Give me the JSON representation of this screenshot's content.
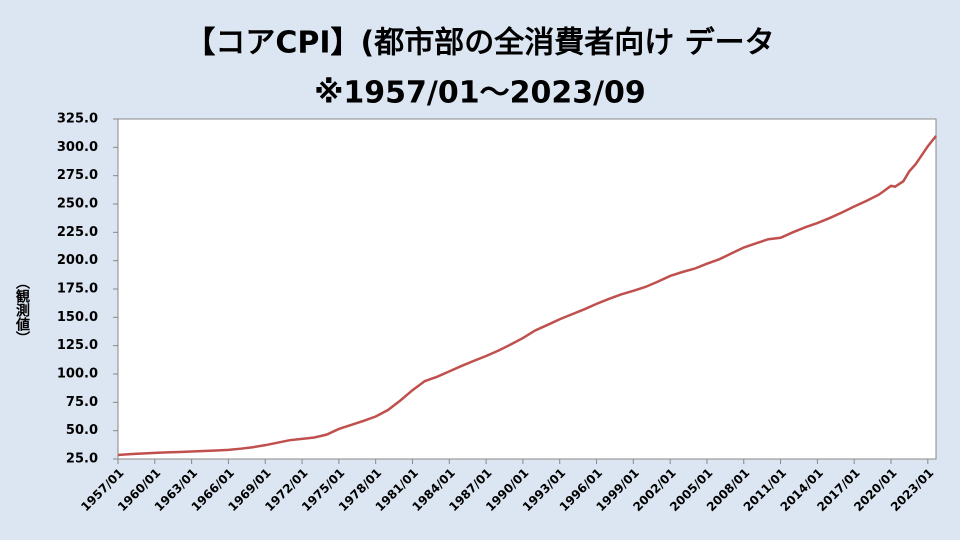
{
  "chart_data": {
    "type": "line",
    "title": "【コアCPI】(都市部の全消費者向け データ",
    "subtitle": "※1957/01～2023/09",
    "y_label": "（観測値）",
    "x": [
      "1957/01",
      "1958/01",
      "1959/01",
      "1960/01",
      "1961/01",
      "1962/01",
      "1963/01",
      "1964/01",
      "1965/01",
      "1966/01",
      "1967/01",
      "1968/01",
      "1969/01",
      "1970/01",
      "1971/01",
      "1972/01",
      "1973/01",
      "1974/01",
      "1975/01",
      "1976/01",
      "1977/01",
      "1978/01",
      "1979/01",
      "1980/01",
      "1981/01",
      "1982/01",
      "1983/01",
      "1984/01",
      "1985/01",
      "1986/01",
      "1987/01",
      "1988/01",
      "1989/01",
      "1990/01",
      "1991/01",
      "1992/01",
      "1993/01",
      "1994/01",
      "1995/01",
      "1996/01",
      "1997/01",
      "1998/01",
      "1999/01",
      "2000/01",
      "2001/01",
      "2002/01",
      "2003/01",
      "2004/01",
      "2005/01",
      "2006/01",
      "2007/01",
      "2008/01",
      "2009/01",
      "2010/01",
      "2011/01",
      "2012/01",
      "2013/01",
      "2014/01",
      "2015/01",
      "2016/01",
      "2017/01",
      "2018/01",
      "2019/01",
      "2020/01",
      "2020/05",
      "2021/01",
      "2021/07",
      "2022/01",
      "2022/07",
      "2023/01",
      "2023/09"
    ],
    "series": [
      {
        "name": "コアCPI",
        "color": "#c0504d",
        "values": [
          28.5,
          29.3,
          29.8,
          30.4,
          30.8,
          31.2,
          31.6,
          32.1,
          32.5,
          33.0,
          34.1,
          35.4,
          37.2,
          39.4,
          41.6,
          42.8,
          44.0,
          46.5,
          51.5,
          55.1,
          58.6,
          62.5,
          68.2,
          76.5,
          85.7,
          93.7,
          97.5,
          102.3,
          107.1,
          111.6,
          115.9,
          120.6,
          126.0,
          131.7,
          138.4,
          143.3,
          148.3,
          152.7,
          157.1,
          161.9,
          166.2,
          170.2,
          173.4,
          176.9,
          181.5,
          186.5,
          190.0,
          193.0,
          197.3,
          201.2,
          206.4,
          211.6,
          215.3,
          218.9,
          220.2,
          225.0,
          229.4,
          233.2,
          237.6,
          242.5,
          247.8,
          252.8,
          258.2,
          266.0,
          265.3,
          270.0,
          279.0,
          285.0,
          293.0,
          301.0,
          310.0
        ]
      }
    ],
    "xlim": [
      "1957/01",
      "2023/09"
    ],
    "xticks": [
      "1957/01",
      "1960/01",
      "1963/01",
      "1966/01",
      "1969/01",
      "1972/01",
      "1975/01",
      "1978/01",
      "1981/01",
      "1984/01",
      "1987/01",
      "1990/01",
      "1993/01",
      "1996/01",
      "1999/01",
      "2002/01",
      "2005/01",
      "2008/01",
      "2011/01",
      "2014/01",
      "2017/01",
      "2020/01",
      "2023/01"
    ],
    "ylim": [
      25,
      325
    ],
    "yticks": [
      {
        "value": 25,
        "label": "25.0"
      },
      {
        "value": 50,
        "label": "50.0"
      },
      {
        "value": 75,
        "label": "75.0"
      },
      {
        "value": 100,
        "label": "100.0"
      },
      {
        "value": 125,
        "label": "125.0"
      },
      {
        "value": 150,
        "label": "150.0"
      },
      {
        "value": 175,
        "label": "175.0"
      },
      {
        "value": 200,
        "label": "200.0"
      },
      {
        "value": 225,
        "label": "225.0"
      },
      {
        "value": 250,
        "label": "250.0"
      },
      {
        "value": 275,
        "label": "275.0"
      },
      {
        "value": 300,
        "label": "300.0"
      },
      {
        "value": 325,
        "label": "325.0"
      }
    ],
    "grid": false
  }
}
